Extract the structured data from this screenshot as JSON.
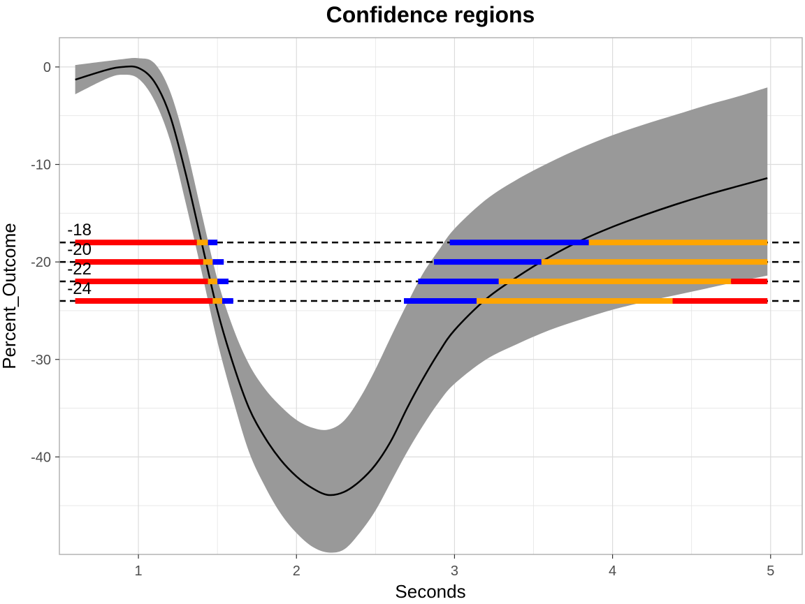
{
  "chart_data": {
    "type": "line",
    "title": "Confidence regions",
    "xlabel": "Seconds",
    "ylabel": "Percent_Outcome",
    "xlim": [
      0.5,
      5.2
    ],
    "ylim": [
      -50,
      3
    ],
    "x_ticks": [
      1,
      2,
      3,
      4,
      5
    ],
    "y_ticks": [
      0,
      -10,
      -20,
      -30,
      -40
    ],
    "grid": true,
    "colors": {
      "band": "#999999",
      "curve": "#000000",
      "red": "#ff0000",
      "orange": "#ffa500",
      "blue": "#0000ff",
      "threshold": "#000000",
      "grid": "#e5e5e5",
      "panel_border": "#b3b3b3"
    },
    "estimate": {
      "x": [
        0.6,
        0.8,
        0.9,
        1.0,
        1.1,
        1.2,
        1.3,
        1.4,
        1.5,
        1.6,
        1.7,
        1.8,
        1.9,
        2.0,
        2.1,
        2.2,
        2.3,
        2.4,
        2.5,
        2.6,
        2.7,
        2.8,
        2.9,
        3.0,
        3.2,
        3.4,
        3.6,
        3.8,
        4.0,
        4.2,
        4.4,
        4.6,
        4.8,
        4.98
      ],
      "y": [
        -1.3,
        -0.3,
        0.0,
        -0.1,
        -1.5,
        -5.0,
        -11.0,
        -18.0,
        -25.0,
        -30.5,
        -35.0,
        -38.0,
        -40.3,
        -42.0,
        -43.2,
        -43.9,
        -43.6,
        -42.5,
        -40.8,
        -38.3,
        -35.0,
        -32.0,
        -29.3,
        -27.0,
        -23.8,
        -21.5,
        -19.5,
        -17.8,
        -16.4,
        -15.2,
        -14.1,
        -13.1,
        -12.2,
        -11.4
      ],
      "upper": [
        0.2,
        0.6,
        0.8,
        0.9,
        0.4,
        -2.5,
        -8.0,
        -15.0,
        -21.8,
        -26.8,
        -30.5,
        -33.0,
        -34.8,
        -36.2,
        -37.0,
        -37.2,
        -36.3,
        -34.0,
        -31.0,
        -27.6,
        -24.3,
        -21.2,
        -18.8,
        -16.6,
        -13.6,
        -11.5,
        -9.8,
        -8.3,
        -7.0,
        -5.9,
        -4.9,
        -3.9,
        -3.0,
        -2.1
      ],
      "lower": [
        -2.8,
        -1.2,
        -0.8,
        -1.2,
        -3.4,
        -7.5,
        -14.0,
        -21.0,
        -28.2,
        -34.2,
        -39.5,
        -43.0,
        -45.8,
        -47.8,
        -49.2,
        -49.8,
        -49.5,
        -47.8,
        -45.5,
        -42.5,
        -39.5,
        -36.8,
        -34.4,
        -32.5,
        -30.0,
        -28.4,
        -27.0,
        -25.9,
        -24.9,
        -24.1,
        -23.4,
        -22.7,
        -22.0,
        -21.4
      ]
    },
    "thresholds": [
      {
        "label": "-18",
        "y": -18,
        "segments": [
          {
            "x0": 0.6,
            "x1": 1.37,
            "color": "red"
          },
          {
            "x0": 1.37,
            "x1": 1.44,
            "color": "orange"
          },
          {
            "x0": 1.44,
            "x1": 1.5,
            "color": "blue"
          },
          {
            "x0": 2.97,
            "x1": 3.85,
            "color": "blue"
          },
          {
            "x0": 3.85,
            "x1": 4.98,
            "color": "orange"
          }
        ]
      },
      {
        "label": "-20",
        "y": -20,
        "segments": [
          {
            "x0": 0.6,
            "x1": 1.41,
            "color": "red"
          },
          {
            "x0": 1.41,
            "x1": 1.47,
            "color": "orange"
          },
          {
            "x0": 1.47,
            "x1": 1.54,
            "color": "blue"
          },
          {
            "x0": 2.87,
            "x1": 3.55,
            "color": "blue"
          },
          {
            "x0": 3.55,
            "x1": 4.98,
            "color": "orange"
          }
        ]
      },
      {
        "label": "-22",
        "y": -22,
        "segments": [
          {
            "x0": 0.6,
            "x1": 1.44,
            "color": "red"
          },
          {
            "x0": 1.44,
            "x1": 1.5,
            "color": "orange"
          },
          {
            "x0": 1.5,
            "x1": 1.57,
            "color": "blue"
          },
          {
            "x0": 2.77,
            "x1": 3.28,
            "color": "blue"
          },
          {
            "x0": 3.28,
            "x1": 4.75,
            "color": "orange"
          },
          {
            "x0": 4.75,
            "x1": 4.98,
            "color": "red"
          }
        ]
      },
      {
        "label": "-24",
        "y": -24,
        "segments": [
          {
            "x0": 0.6,
            "x1": 1.47,
            "color": "red"
          },
          {
            "x0": 1.47,
            "x1": 1.53,
            "color": "orange"
          },
          {
            "x0": 1.53,
            "x1": 1.6,
            "color": "blue"
          },
          {
            "x0": 2.68,
            "x1": 3.14,
            "color": "blue"
          },
          {
            "x0": 3.14,
            "x1": 4.38,
            "color": "orange"
          },
          {
            "x0": 4.38,
            "x1": 4.98,
            "color": "red"
          }
        ]
      }
    ]
  }
}
